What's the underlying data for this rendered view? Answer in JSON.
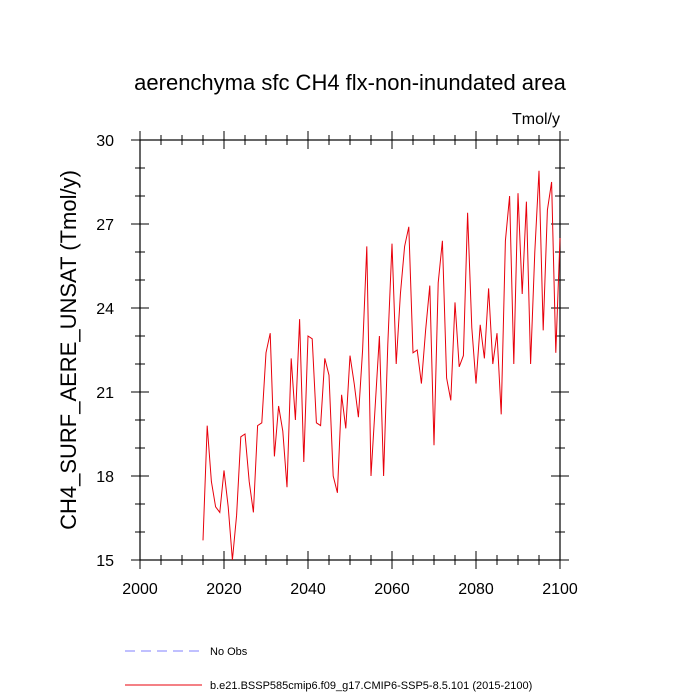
{
  "chart_data": {
    "type": "line",
    "title": "aerenchyma sfc CH4 flx-non-inundated area",
    "units": "Tmol/y",
    "xlabel": "",
    "ylabel": "CH4_SURF_AERE_UNSAT  (Tmol/y)",
    "xlim": [
      2000,
      2100
    ],
    "ylim": [
      15,
      30
    ],
    "xticks": [
      2000,
      2020,
      2040,
      2060,
      2080,
      2100
    ],
    "yticks": [
      15,
      18,
      21,
      24,
      27,
      30
    ],
    "grid": false,
    "legend_placement": "bottom",
    "series": [
      {
        "name": "b.e21.BSSP585cmip6.f09_g17.CMIP6-SSP5-8.5.101 (2015-2100)",
        "color": "#e8000b",
        "style": "solid",
        "x": [
          2015,
          2016,
          2017,
          2018,
          2019,
          2020,
          2021,
          2022,
          2023,
          2024,
          2025,
          2026,
          2027,
          2028,
          2029,
          2030,
          2031,
          2032,
          2033,
          2034,
          2035,
          2036,
          2037,
          2038,
          2039,
          2040,
          2041,
          2042,
          2043,
          2044,
          2045,
          2046,
          2047,
          2048,
          2049,
          2050,
          2051,
          2052,
          2053,
          2054,
          2055,
          2056,
          2057,
          2058,
          2059,
          2060,
          2061,
          2062,
          2063,
          2064,
          2065,
          2066,
          2067,
          2068,
          2069,
          2070,
          2071,
          2072,
          2073,
          2074,
          2075,
          2076,
          2077,
          2078,
          2079,
          2080,
          2081,
          2082,
          2083,
          2084,
          2085,
          2086,
          2087,
          2088,
          2089,
          2090,
          2091,
          2092,
          2093,
          2094,
          2095,
          2096,
          2097,
          2098,
          2099,
          2100
        ],
        "values": [
          15.7,
          19.8,
          17.8,
          16.9,
          16.7,
          18.2,
          16.9,
          15.0,
          16.6,
          19.4,
          19.5,
          17.8,
          16.7,
          19.8,
          19.9,
          22.4,
          23.1,
          18.7,
          20.5,
          19.6,
          17.6,
          22.2,
          20.0,
          23.6,
          18.5,
          23.0,
          22.9,
          19.9,
          19.8,
          22.2,
          21.6,
          18.0,
          17.4,
          20.9,
          19.7,
          22.3,
          21.3,
          20.1,
          22.5,
          26.2,
          18.0,
          20.5,
          23.0,
          18.0,
          22.7,
          26.3,
          22.0,
          24.5,
          26.2,
          26.9,
          22.4,
          22.5,
          21.3,
          23.2,
          24.8,
          19.1,
          24.9,
          26.4,
          21.5,
          20.7,
          24.2,
          21.9,
          22.3,
          27.4,
          23.3,
          21.3,
          23.4,
          22.2,
          24.7,
          22.0,
          23.1,
          20.2,
          26.4,
          28.0,
          22.0,
          28.1,
          24.5,
          27.8,
          22.0,
          26.0,
          28.9,
          23.2,
          27.5,
          28.5,
          22.4,
          26.5
        ]
      }
    ],
    "legend": [
      {
        "label": "No Obs",
        "color": "#8080ff",
        "style": "dashed"
      },
      {
        "label": "b.e21.BSSP585cmip6.f09_g17.CMIP6-SSP5-8.5.101 (2015-2100)",
        "color": "#e8000b",
        "style": "solid"
      }
    ]
  }
}
